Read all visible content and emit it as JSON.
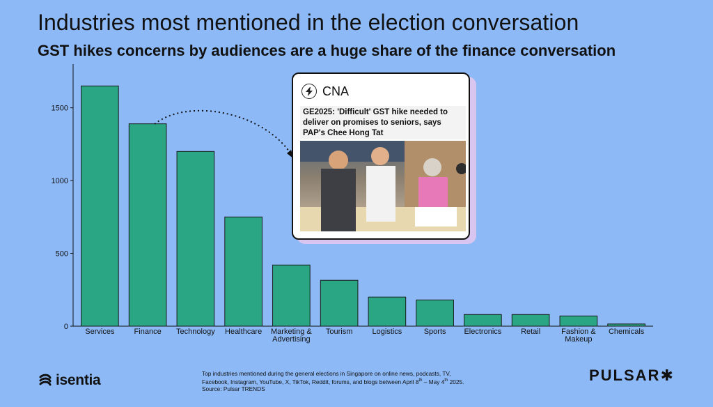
{
  "title": "Industries most mentioned in the election conversation",
  "subtitle": "GST hikes concerns by audiences are a huge share of the finance conversation",
  "colors": {
    "background": "#8db9f7",
    "bar": "#2aa684",
    "bar_stroke": "#1a1a1a"
  },
  "card": {
    "source": "CNA",
    "headline": "GE2025: 'Difficult' GST hike needed to deliver on promises to seniors, says PAP's Chee Hong Tat",
    "icon": "lightning-bolt-icon"
  },
  "footnote": {
    "line1": "Top industries mentioned during the general elections in Singapore on online news, podcasts, TV,",
    "line2": "Facebook, Instagram, YouTube, X, TikTok, Reddit, forums, and blogs between April 8th – May 4th 2025.",
    "line3": "Source: Pulsar TRENDS"
  },
  "logos": {
    "left": "isentia",
    "right": "PULSAR✱"
  },
  "chart_data": {
    "type": "bar",
    "categories": [
      "Services",
      "Finance",
      "Technology",
      "Healthcare",
      "Marketing & Advertising",
      "Tourism",
      "Logistics",
      "Sports",
      "Electronics",
      "Retail",
      "Fashion & Makeup",
      "Chemicals"
    ],
    "values": [
      1650,
      1390,
      1200,
      750,
      420,
      315,
      200,
      180,
      80,
      80,
      70,
      15
    ],
    "ylim": [
      0,
      1800
    ],
    "yticks": [
      0,
      500,
      1000,
      1500
    ],
    "xlabel": "",
    "ylabel": "",
    "grid": false
  }
}
